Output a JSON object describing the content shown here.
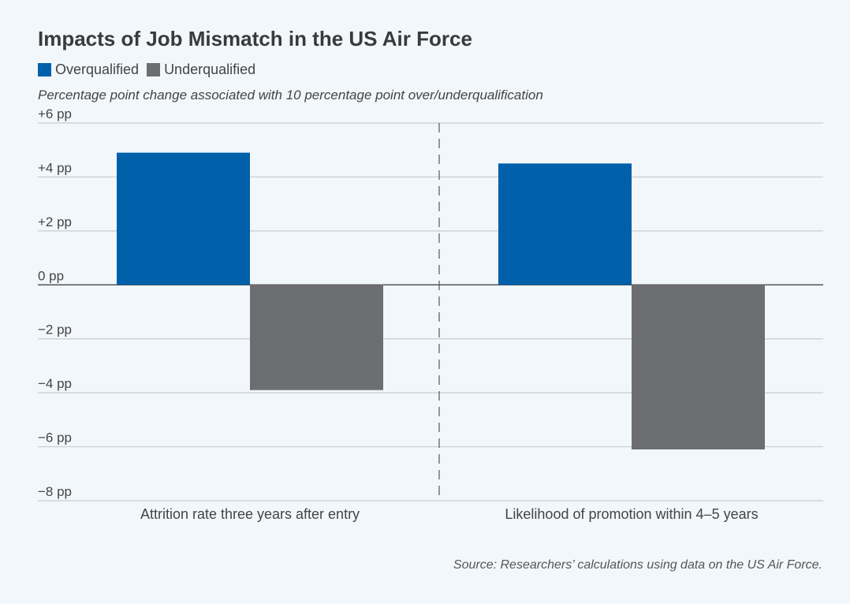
{
  "chart_data": {
    "type": "bar",
    "title": "Impacts of Job Mismatch in the US Air Force",
    "subtitle": "Percentage point change associated with 10 percentage point over/underqualification",
    "source": "Source: Researchers’ calculations using data on the US Air Force.",
    "categories": [
      "Attrition rate three years after entry",
      "Likelihood of promotion within 4–5 years"
    ],
    "series": [
      {
        "name": "Overqualified",
        "color": "#0060a9",
        "values": [
          4.9,
          4.5
        ]
      },
      {
        "name": "Underqualified",
        "color": "#6d6e71",
        "values": [
          -3.9,
          -6.1
        ]
      }
    ],
    "ylim": [
      -8,
      6
    ],
    "yticks": [
      6,
      4,
      2,
      0,
      -2,
      -4,
      -6,
      -8
    ],
    "ytick_labels": [
      "+6 pp",
      "+4 pp",
      "+2 pp",
      "0 pp",
      "−2 pp",
      "−4 pp",
      "−6 pp",
      "−8 pp"
    ],
    "xlabel": "",
    "ylabel": "",
    "grid": true,
    "legend_position": "top-left"
  }
}
